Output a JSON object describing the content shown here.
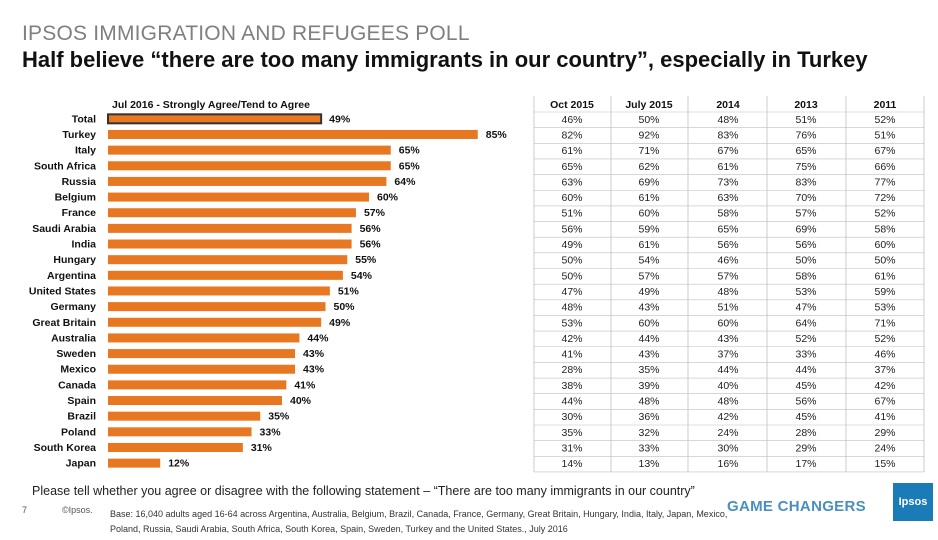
{
  "header": {
    "kicker": "IPSOS IMMIGRATION AND REFUGEES POLL",
    "headline": "Half believe “there are too many immigrants in our country”, especially in Turkey"
  },
  "footer": {
    "question": "Please tell whether you agree or disagree with the following statement – “There are too many immigrants in our country”",
    "page_number": "7",
    "copyright": "©Ipsos.",
    "base": "Base: 16,040 adults aged 16-64 across  Argentina, Australia, Belgium, Brazil, Canada, France, Germany, Great Britain, Hungary, India, Italy, Japan, Mexico, Poland, Russia, Saudi Arabia, South Africa, South Korea, Spain, Sweden, Turkey and the United States., July 2016",
    "tagline": "GAME CHANGERS",
    "logo": "Ipsos"
  },
  "colors": {
    "bar": "#e87722",
    "total_outline": "#333333",
    "grid": "#bfbfbf"
  },
  "chart_data": {
    "type": "bar",
    "orientation": "horizontal",
    "title": "Jul 2016 - Strongly Agree/Tend to Agree",
    "categories": [
      "Total",
      "Turkey",
      "Italy",
      "South Africa",
      "Russia",
      "Belgium",
      "France",
      "Saudi Arabia",
      "India",
      "Hungary",
      "Argentina",
      "United States",
      "Germany",
      "Great Britain",
      "Australia",
      "Sweden",
      "Mexico",
      "Canada",
      "Spain",
      "Brazil",
      "Poland",
      "South Korea",
      "Japan"
    ],
    "values": [
      49,
      85,
      65,
      65,
      64,
      60,
      57,
      56,
      56,
      55,
      54,
      51,
      50,
      49,
      44,
      43,
      43,
      41,
      40,
      35,
      33,
      31,
      12
    ],
    "value_suffix": "%",
    "xlim": [
      0,
      100
    ],
    "table": {
      "columns": [
        "Oct 2015",
        "July 2015",
        "2014",
        "2013",
        "2011"
      ],
      "rows": [
        [
          "46%",
          "50%",
          "48%",
          "51%",
          "52%"
        ],
        [
          "82%",
          "92%",
          "83%",
          "76%",
          "51%"
        ],
        [
          "61%",
          "71%",
          "67%",
          "65%",
          "67%"
        ],
        [
          "65%",
          "62%",
          "61%",
          "75%",
          "66%"
        ],
        [
          "63%",
          "69%",
          "73%",
          "83%",
          "77%"
        ],
        [
          "60%",
          "61%",
          "63%",
          "70%",
          "72%"
        ],
        [
          "51%",
          "60%",
          "58%",
          "57%",
          "52%"
        ],
        [
          "56%",
          "59%",
          "65%",
          "69%",
          "58%"
        ],
        [
          "49%",
          "61%",
          "56%",
          "56%",
          "60%"
        ],
        [
          "50%",
          "54%",
          "46%",
          "50%",
          "50%"
        ],
        [
          "50%",
          "57%",
          "57%",
          "58%",
          "61%"
        ],
        [
          "47%",
          "49%",
          "48%",
          "53%",
          "59%"
        ],
        [
          "48%",
          "43%",
          "51%",
          "47%",
          "53%"
        ],
        [
          "53%",
          "60%",
          "60%",
          "64%",
          "71%"
        ],
        [
          "42%",
          "44%",
          "43%",
          "52%",
          "52%"
        ],
        [
          "41%",
          "43%",
          "37%",
          "33%",
          "46%"
        ],
        [
          "28%",
          "35%",
          "44%",
          "44%",
          "37%"
        ],
        [
          "38%",
          "39%",
          "40%",
          "45%",
          "42%"
        ],
        [
          "44%",
          "48%",
          "48%",
          "56%",
          "67%"
        ],
        [
          "30%",
          "36%",
          "42%",
          "45%",
          "41%"
        ],
        [
          "35%",
          "32%",
          "24%",
          "28%",
          "29%"
        ],
        [
          "31%",
          "33%",
          "30%",
          "29%",
          "24%"
        ],
        [
          "14%",
          "13%",
          "16%",
          "17%",
          "15%"
        ]
      ]
    }
  }
}
